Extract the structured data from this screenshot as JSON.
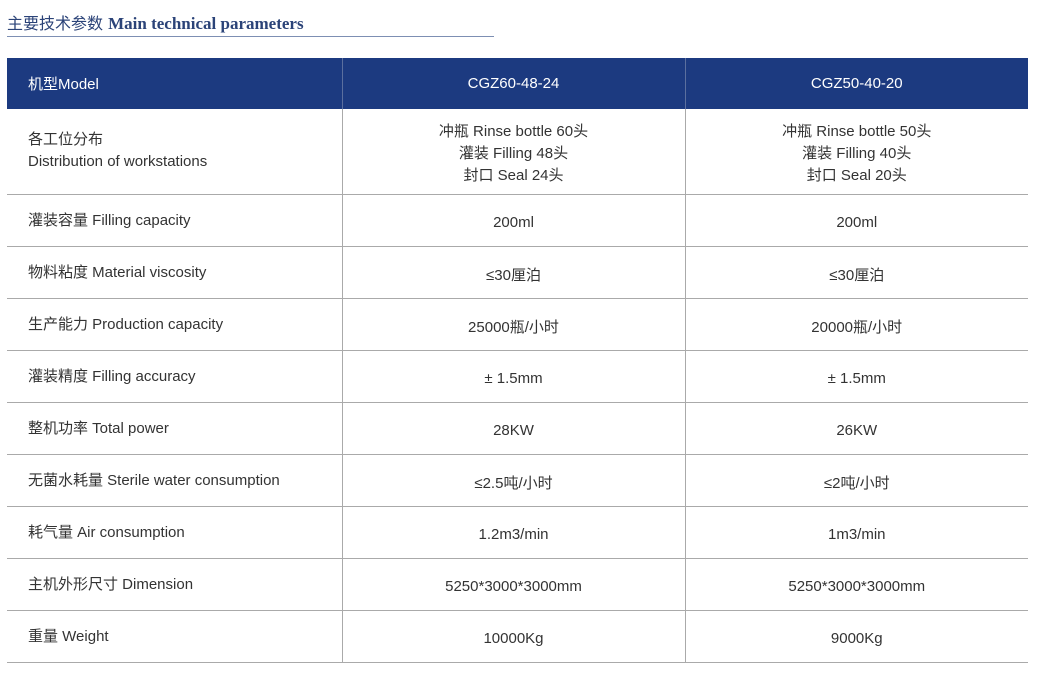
{
  "title": {
    "zh": "主要技术参数",
    "en": "Main technical parameters"
  },
  "header": {
    "label": "机型Model",
    "models": [
      "CGZ60-48-24",
      "CGZ50-40-20"
    ]
  },
  "workstations": {
    "label_zh": "各工位分布",
    "label_en": "Distribution of workstations",
    "values": [
      [
        "冲瓶 Rinse bottle 60头",
        "灌装 Filling 48头",
        "封口 Seal 24头"
      ],
      [
        "冲瓶 Rinse bottle 50头",
        "灌装 Filling 40头",
        "封口 Seal 20头"
      ]
    ]
  },
  "rows": [
    {
      "label": "灌装容量 Filling capacity",
      "values": [
        "200ml",
        "200ml"
      ]
    },
    {
      "label": "物料粘度 Material viscosity",
      "values": [
        "≤30厘泊",
        "≤30厘泊"
      ]
    },
    {
      "label": "生产能力 Production capacity",
      "values": [
        "25000瓶/小时",
        "20000瓶/小时"
      ]
    },
    {
      "label": "灌装精度 Filling accuracy",
      "values": [
        "± 1.5mm",
        "± 1.5mm"
      ]
    },
    {
      "label": "整机功率 Total power",
      "values": [
        "28KW",
        "26KW"
      ]
    },
    {
      "label": "无菌水耗量 Sterile water consumption",
      "values": [
        "≤2.5吨/小时",
        "≤2吨/小时"
      ]
    },
    {
      "label": "耗气量 Air consumption",
      "values": [
        "1.2m3/min",
        "1m3/min"
      ]
    },
    {
      "label": "主机外形尺寸 Dimension",
      "values": [
        "5250*3000*3000mm",
        "5250*3000*3000mm"
      ]
    },
    {
      "label": "重量 Weight",
      "values": [
        "10000Kg",
        "9000Kg"
      ]
    }
  ]
}
